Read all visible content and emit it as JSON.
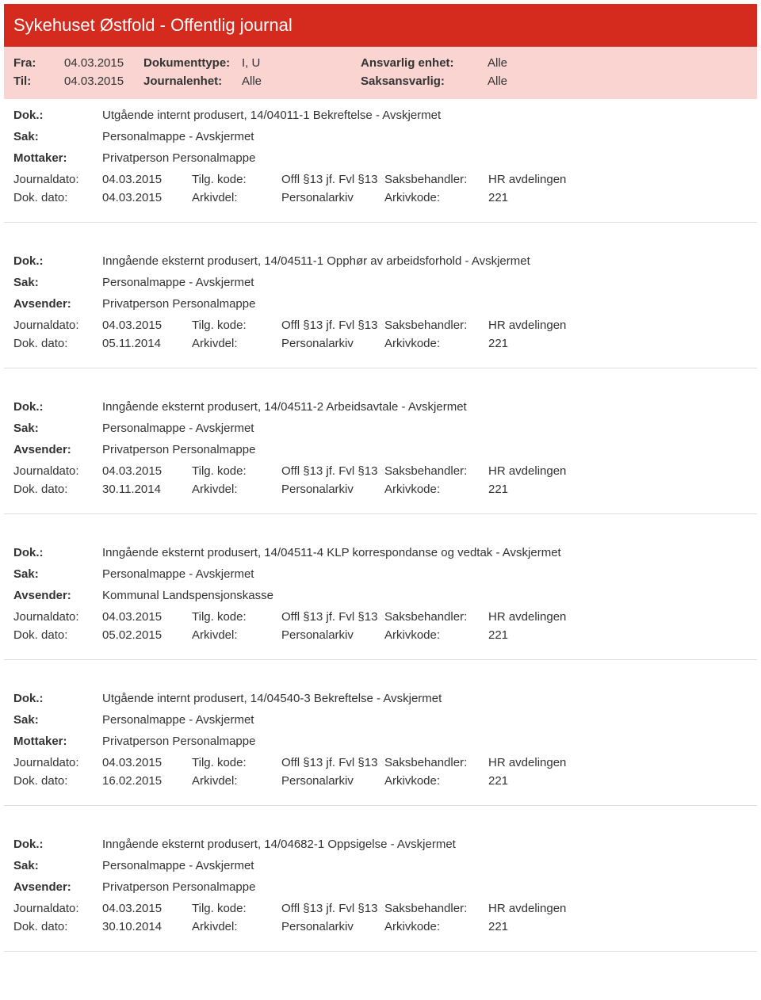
{
  "header": {
    "title": "Sykehuset Østfold - Offentlig journal",
    "fra_label": "Fra:",
    "fra_value": "04.03.2015",
    "til_label": "Til:",
    "til_value": "04.03.2015",
    "dokumenttype_label": "Dokumenttype:",
    "dokumenttype_value": "I, U",
    "journalenhet_label": "Journalenhet:",
    "journalenhet_value": "Alle",
    "ansvarlig_label": "Ansvarlig enhet:",
    "ansvarlig_value": "Alle",
    "saksansvarlig_label": "Saksansvarlig:",
    "saksansvarlig_value": "Alle"
  },
  "labels": {
    "dok": "Dok.:",
    "sak": "Sak:",
    "mottaker": "Mottaker:",
    "avsender": "Avsender:",
    "journaldato": "Journaldato:",
    "dokdato": "Dok. dato:",
    "tilgkode": "Tilg. kode:",
    "arkivdel": "Arkivdel:",
    "saksbehandler": "Saksbehandler:",
    "arkivkode": "Arkivkode:"
  },
  "entries": [
    {
      "dok": "Utgående internt produsert, 14/04011-1 Bekreftelse - Avskjermet",
      "sak": "Personalmappe - Avskjermet",
      "party_label": "Mottaker:",
      "party_value": "Privatperson Personalmappe",
      "journaldato": "04.03.2015",
      "tilgkode": "Offl §13 jf. Fvl §13",
      "saksbehandler": "HR avdelingen",
      "dokdato": "04.03.2015",
      "arkivdel": "Personalarkiv",
      "arkivkode": "221"
    },
    {
      "dok": "Inngående eksternt produsert, 14/04511-1 Opphør av arbeidsforhold - Avskjermet",
      "sak": "Personalmappe - Avskjermet",
      "party_label": "Avsender:",
      "party_value": "Privatperson Personalmappe",
      "journaldato": "04.03.2015",
      "tilgkode": "Offl §13 jf. Fvl §13",
      "saksbehandler": "HR avdelingen",
      "dokdato": "05.11.2014",
      "arkivdel": "Personalarkiv",
      "arkivkode": "221"
    },
    {
      "dok": "Inngående eksternt produsert, 14/04511-2 Arbeidsavtale - Avskjermet",
      "sak": "Personalmappe - Avskjermet",
      "party_label": "Avsender:",
      "party_value": "Privatperson Personalmappe",
      "journaldato": "04.03.2015",
      "tilgkode": "Offl §13 jf. Fvl §13",
      "saksbehandler": "HR avdelingen",
      "dokdato": "30.11.2014",
      "arkivdel": "Personalarkiv",
      "arkivkode": "221"
    },
    {
      "dok": "Inngående eksternt produsert, 14/04511-4 KLP korrespondanse og vedtak - Avskjermet",
      "sak": "Personalmappe - Avskjermet",
      "party_label": "Avsender:",
      "party_value": "Kommunal Landspensjonskasse",
      "journaldato": "04.03.2015",
      "tilgkode": "Offl §13 jf. Fvl §13",
      "saksbehandler": "HR avdelingen",
      "dokdato": "05.02.2015",
      "arkivdel": "Personalarkiv",
      "arkivkode": "221"
    },
    {
      "dok": "Utgående internt produsert, 14/04540-3 Bekreftelse - Avskjermet",
      "sak": "Personalmappe - Avskjermet",
      "party_label": "Mottaker:",
      "party_value": "Privatperson Personalmappe",
      "journaldato": "04.03.2015",
      "tilgkode": "Offl §13 jf. Fvl §13",
      "saksbehandler": "HR avdelingen",
      "dokdato": "16.02.2015",
      "arkivdel": "Personalarkiv",
      "arkivkode": "221"
    },
    {
      "dok": "Inngående eksternt produsert, 14/04682-1 Oppsigelse - Avskjermet",
      "sak": "Personalmappe - Avskjermet",
      "party_label": "Avsender:",
      "party_value": "Privatperson Personalmappe",
      "journaldato": "04.03.2015",
      "tilgkode": "Offl §13 jf. Fvl §13",
      "saksbehandler": "HR avdelingen",
      "dokdato": "30.10.2014",
      "arkivdel": "Personalarkiv",
      "arkivkode": "221"
    }
  ]
}
